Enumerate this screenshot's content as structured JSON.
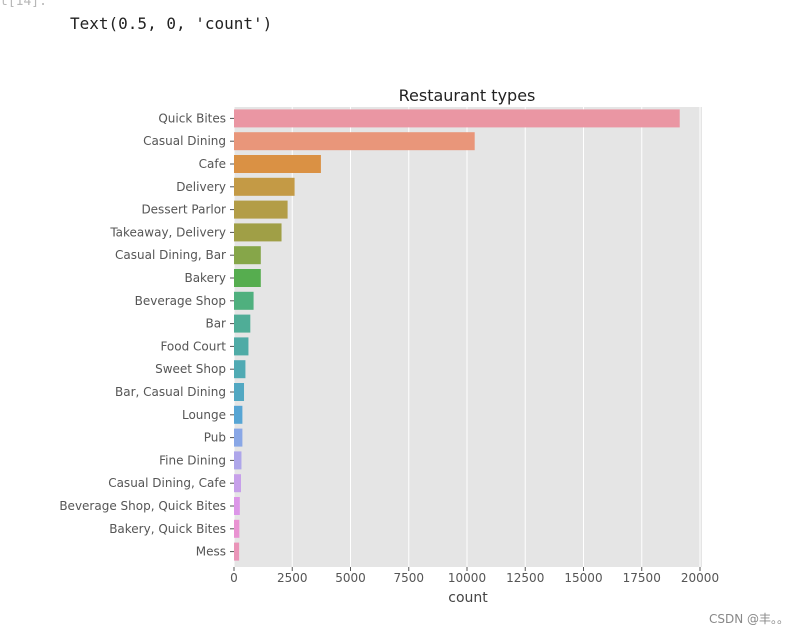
{
  "cell": {
    "prompt": "t[14]:",
    "output": "Text(0.5, 0, 'count')"
  },
  "watermark": "CSDN @丰。。",
  "chart_data": {
    "type": "bar",
    "orientation": "horizontal",
    "title": "Restaurant types",
    "xlabel": "count",
    "ylabel": "",
    "xlim": [
      0,
      20000
    ],
    "xticks": [
      0,
      2500,
      5000,
      7500,
      10000,
      12500,
      15000,
      17500,
      20000
    ],
    "grid": true,
    "categories": [
      "Quick Bites",
      "Casual Dining",
      "Cafe",
      "Delivery",
      "Dessert Parlor",
      "Takeaway, Delivery",
      "Casual Dining, Bar",
      "Bakery",
      "Beverage Shop",
      "Bar",
      "Food Court",
      "Sweet Shop",
      "Bar, Casual Dining",
      "Lounge",
      "Pub",
      "Fine Dining",
      "Casual Dining, Cafe",
      "Beverage Shop, Quick Bites",
      "Bakery, Quick Bites",
      "Mess"
    ],
    "values": [
      19130,
      10330,
      3730,
      2600,
      2300,
      2040,
      1150,
      1150,
      840,
      700,
      620,
      490,
      430,
      360,
      360,
      320,
      300,
      250,
      230,
      220
    ],
    "colors": [
      "#ea96a3",
      "#e9967a",
      "#da9144",
      "#c49a45",
      "#b39d47",
      "#a09f46",
      "#86a649",
      "#56ad4f",
      "#4fb07e",
      "#4fad97",
      "#4faba6",
      "#50aab3",
      "#52a8c2",
      "#57a5d4",
      "#89a7e6",
      "#aea6ea",
      "#c7a0ea",
      "#dc96e8",
      "#e993d2",
      "#ea94b8"
    ]
  }
}
